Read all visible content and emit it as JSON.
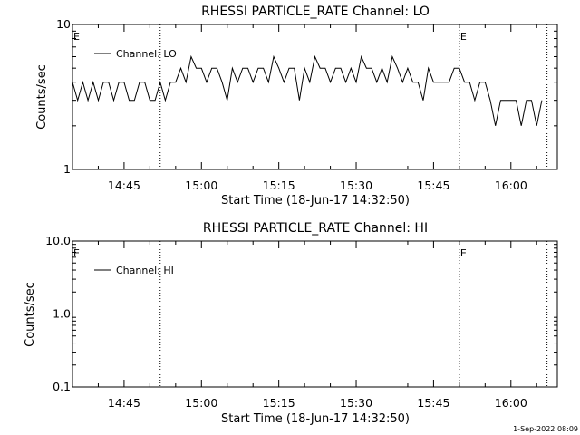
{
  "chart_data": [
    {
      "type": "line",
      "title": "RHESSI PARTICLE_RATE Channel: LO",
      "xlabel": "Start Time (18-Jun-17 14:32:50)",
      "ylabel": "Counts/sec",
      "yscale": "log",
      "ylim": [
        1,
        10
      ],
      "ytick_labels": [
        "1",
        "10"
      ],
      "xlim": [
        "14:35",
        "16:09"
      ],
      "xtick_labels": [
        "14:45",
        "15:00",
        "15:15",
        "15:30",
        "15:45",
        "16:00"
      ],
      "legend": {
        "position": "top-left",
        "entries": [
          "Channel: LO"
        ]
      },
      "event_markers": [
        {
          "time": "14:52",
          "label": ""
        },
        {
          "time": "15:50",
          "label": "E"
        },
        {
          "time": "16:07",
          "label": ""
        },
        {
          "time": "14:35",
          "label": "E"
        }
      ],
      "series": [
        {
          "name": "Channel: LO",
          "x": [
            "14:35",
            "14:36",
            "14:37",
            "14:38",
            "14:39",
            "14:40",
            "14:41",
            "14:42",
            "14:43",
            "14:44",
            "14:45",
            "14:46",
            "14:47",
            "14:48",
            "14:49",
            "14:50",
            "14:51",
            "14:52",
            "14:53",
            "14:54",
            "14:55",
            "14:56",
            "14:57",
            "14:58",
            "14:59",
            "15:00",
            "15:01",
            "15:02",
            "15:03",
            "15:04",
            "15:05",
            "15:06",
            "15:07",
            "15:08",
            "15:09",
            "15:10",
            "15:11",
            "15:12",
            "15:13",
            "15:14",
            "15:15",
            "15:16",
            "15:17",
            "15:18",
            "15:19",
            "15:20",
            "15:21",
            "15:22",
            "15:23",
            "15:24",
            "15:25",
            "15:26",
            "15:27",
            "15:28",
            "15:29",
            "15:30",
            "15:31",
            "15:32",
            "15:33",
            "15:34",
            "15:35",
            "15:36",
            "15:37",
            "15:38",
            "15:39",
            "15:40",
            "15:41",
            "15:42",
            "15:43",
            "15:44",
            "15:45",
            "15:46",
            "15:47",
            "15:48",
            "15:49",
            "15:50",
            "15:51",
            "15:52",
            "15:53",
            "15:54",
            "15:55",
            "15:56",
            "15:57",
            "15:58",
            "15:59",
            "16:00",
            "16:01",
            "16:02",
            "16:03",
            "16:04",
            "16:05",
            "16:06"
          ],
          "y": [
            4,
            3,
            4,
            3,
            4,
            3,
            4,
            4,
            3,
            4,
            4,
            3,
            3,
            4,
            4,
            3,
            3,
            4,
            3,
            4,
            4,
            5,
            4,
            6,
            5,
            5,
            4,
            5,
            5,
            4,
            3,
            5,
            4,
            5,
            5,
            4,
            5,
            5,
            4,
            6,
            5,
            4,
            5,
            5,
            3,
            5,
            4,
            6,
            5,
            5,
            4,
            5,
            5,
            4,
            5,
            4,
            6,
            5,
            5,
            4,
            5,
            4,
            6,
            5,
            4,
            5,
            4,
            4,
            3,
            5,
            4,
            4,
            4,
            4,
            5,
            5,
            4,
            4,
            3,
            4,
            4,
            3,
            2,
            3,
            3,
            3,
            3,
            2,
            3,
            3,
            2,
            3
          ]
        }
      ]
    },
    {
      "type": "line",
      "title": "RHESSI PARTICLE_RATE Channel: HI",
      "xlabel": "Start Time (18-Jun-17 14:32:50)",
      "ylabel": "Counts/sec",
      "yscale": "log",
      "ylim": [
        0.1,
        10
      ],
      "ytick_labels": [
        "0.1",
        "1.0",
        "10.0"
      ],
      "xlim": [
        "14:35",
        "16:09"
      ],
      "xtick_labels": [
        "14:45",
        "15:00",
        "15:15",
        "15:30",
        "15:45",
        "16:00"
      ],
      "legend": {
        "position": "top-left",
        "entries": [
          "Channel: HI"
        ]
      },
      "event_markers": [
        {
          "time": "14:52",
          "label": ""
        },
        {
          "time": "15:50",
          "label": "E"
        },
        {
          "time": "16:07",
          "label": ""
        },
        {
          "time": "14:35",
          "label": "E"
        }
      ],
      "series": [
        {
          "name": "Channel: HI",
          "x": [],
          "y": []
        }
      ]
    }
  ],
  "footer": {
    "timestamp": "1-Sep-2022 08:09"
  }
}
